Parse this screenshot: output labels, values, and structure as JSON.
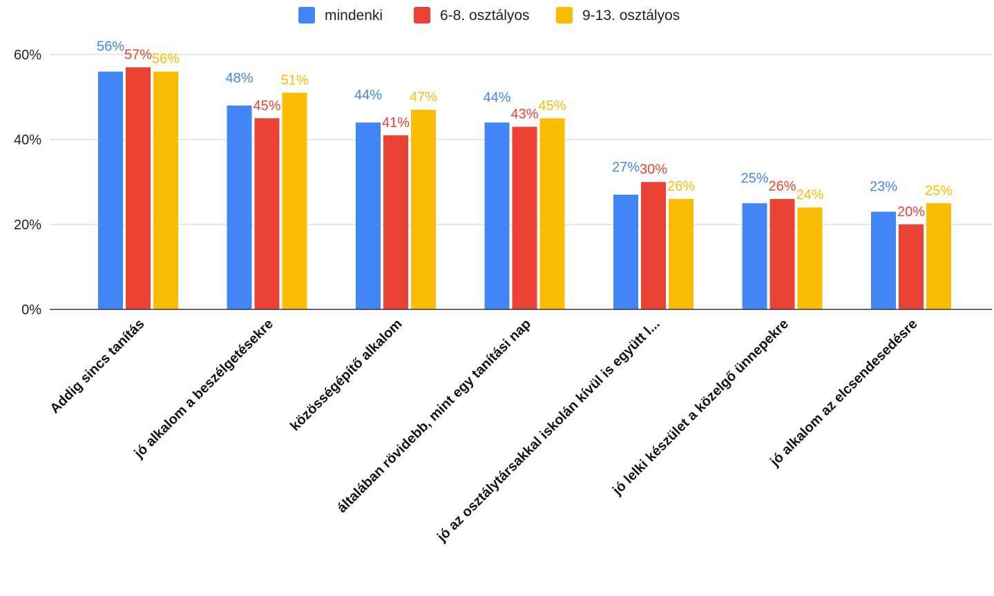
{
  "chart_data": {
    "type": "bar",
    "title": "",
    "xlabel": "",
    "ylabel": "",
    "ylim": [
      0,
      60
    ],
    "yticks": [
      0,
      20,
      40,
      60
    ],
    "ytick_suffix": "%",
    "grid": true,
    "legend_position": "top",
    "categories": [
      "Addig sincs tanítás",
      "jó alkalom a beszélgetésekre",
      "közösségépítő alkalom",
      "általában rövidebb, mint egy tanítási nap",
      "jó az osztálytársakkal iskolán kívül is együtt l...",
      "jó lelki készület a közelgő ünnepekre",
      "jó alkalom az elcsendesedésre"
    ],
    "series": [
      {
        "name": "mindenki",
        "color": "#4285f4",
        "values": [
          56,
          48,
          44,
          44,
          27,
          25,
          23
        ]
      },
      {
        "name": "6-8. osztályos",
        "color": "#ea4335",
        "values": [
          57,
          45,
          41,
          43,
          30,
          26,
          20
        ]
      },
      {
        "name": "9-13. osztályos",
        "color": "#fbbc04",
        "values": [
          56,
          51,
          47,
          45,
          26,
          24,
          25
        ]
      }
    ]
  }
}
